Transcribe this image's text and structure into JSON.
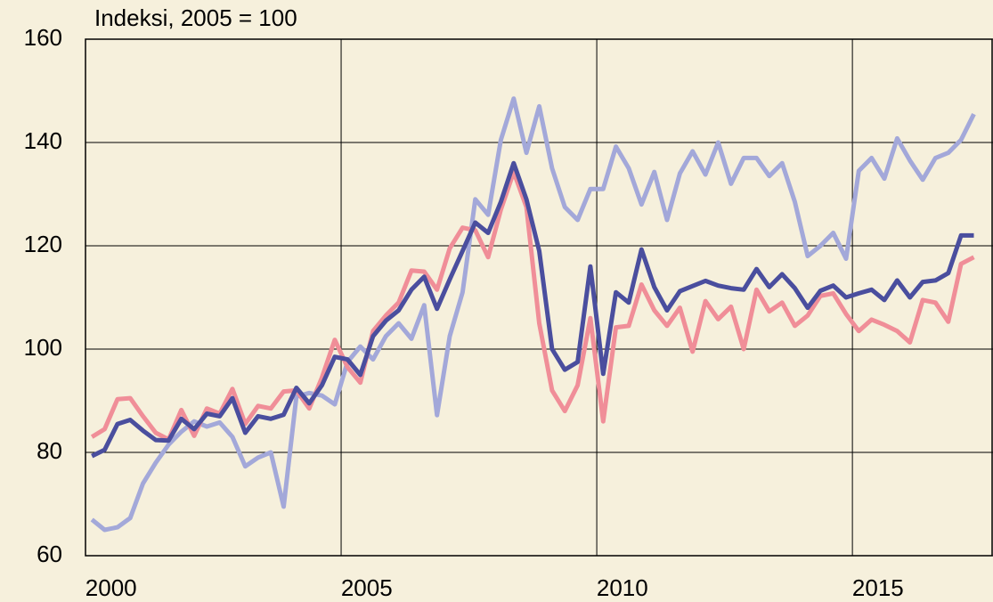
{
  "chart_data": {
    "type": "line",
    "title": "Indeksi, 2005 = 100",
    "x": [
      2000.125,
      2000.375,
      2000.625,
      2000.875,
      2001.125,
      2001.375,
      2001.625,
      2001.875,
      2002.125,
      2002.375,
      2002.625,
      2002.875,
      2003.125,
      2003.375,
      2003.625,
      2003.875,
      2004.125,
      2004.375,
      2004.625,
      2004.875,
      2005.125,
      2005.375,
      2005.625,
      2005.875,
      2006.125,
      2006.375,
      2006.625,
      2006.875,
      2007.125,
      2007.375,
      2007.625,
      2007.875,
      2008.125,
      2008.375,
      2008.625,
      2008.875,
      2009.125,
      2009.375,
      2009.625,
      2009.875,
      2010.125,
      2010.375,
      2010.625,
      2010.875,
      2011.125,
      2011.375,
      2011.625,
      2011.875,
      2012.125,
      2012.375,
      2012.625,
      2012.875,
      2013.125,
      2013.375,
      2013.625,
      2013.875,
      2014.125,
      2014.375,
      2014.625,
      2014.875,
      2015.125,
      2015.375,
      2015.625,
      2015.875,
      2016.125,
      2016.375,
      2016.625,
      2016.875,
      2017.125,
      2017.375
    ],
    "series": [
      {
        "color": "#a3a8d9",
        "values": [
          67,
          65,
          65.5,
          67.3,
          74,
          78,
          81.5,
          84,
          86,
          85,
          85.8,
          83,
          77.3,
          79,
          80,
          69.5,
          90.8,
          91.5,
          91,
          89.3,
          97.5,
          100.5,
          98,
          102.5,
          105,
          102,
          108.5,
          87.2,
          102.5,
          111,
          129,
          126,
          140.5,
          148.5,
          138,
          147,
          135,
          127.5,
          125,
          131,
          131,
          139.2,
          135,
          128,
          134.3,
          125,
          134,
          138.3,
          133.8,
          140,
          132,
          137,
          137,
          133.5,
          136,
          128.5,
          118,
          120,
          122.5,
          117.5,
          134.5,
          137,
          133,
          140.8,
          136.5,
          132.8,
          137,
          138,
          140.5,
          145.5
        ]
      },
      {
        "color": "#f08e98",
        "values": [
          83,
          84.5,
          90.3,
          90.5,
          87,
          83.8,
          82.5,
          88.2,
          83.2,
          88.5,
          87.5,
          92.3,
          85.5,
          89,
          88.5,
          91.8,
          92,
          88.5,
          94.5,
          101.8,
          96.5,
          93.5,
          103.5,
          106.5,
          109,
          115.2,
          115,
          111.5,
          119.5,
          123.5,
          123,
          117.8,
          127,
          134.3,
          127.5,
          105,
          92,
          88,
          93,
          106,
          86,
          104.2,
          104.5,
          112.5,
          107.5,
          104.5,
          108,
          99.5,
          109.3,
          105.8,
          108.2,
          100,
          111.5,
          107.3,
          109,
          104.5,
          106.5,
          110.3,
          110.8,
          106.8,
          103.5,
          105.7,
          104.7,
          103.5,
          101.3,
          109.5,
          109,
          105.3,
          116.5,
          117.8
        ]
      },
      {
        "color": "#4a4e9e",
        "values": [
          79.3,
          80.5,
          85.5,
          86.3,
          84.2,
          82.4,
          82.3,
          86.5,
          84.5,
          87.5,
          87,
          90.5,
          83.8,
          87,
          86.5,
          87.3,
          92.5,
          89.5,
          93,
          98.5,
          98,
          95,
          102.5,
          105.5,
          107.5,
          111.5,
          114,
          107.8,
          113.5,
          119,
          124.5,
          122.5,
          128.5,
          136,
          129,
          119,
          100,
          96,
          97.5,
          116,
          95.2,
          111,
          109,
          119.3,
          112,
          107.5,
          111.2,
          112.2,
          113.2,
          112.3,
          111.8,
          111.5,
          115.5,
          112,
          114.5,
          111.8,
          108,
          111.3,
          112.3,
          110,
          110.8,
          111.5,
          109.5,
          113.3,
          110,
          113,
          113.3,
          114.7,
          122,
          122
        ]
      }
    ],
    "xlim": [
      2000,
      2017.75
    ],
    "xticks": [
      2000,
      2005,
      2010,
      2015
    ],
    "ylim": [
      60,
      160
    ],
    "yticks": [
      60,
      80,
      100,
      120,
      140,
      160
    ],
    "grid": true
  }
}
